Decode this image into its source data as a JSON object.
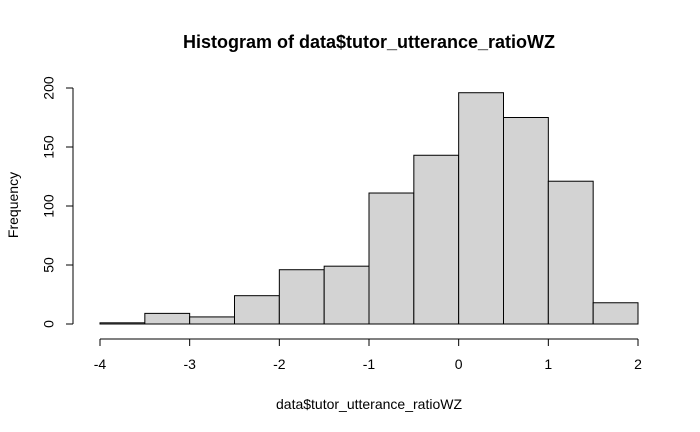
{
  "chart_data": {
    "type": "bar",
    "title": "Histogram of data$tutor_utterance_ratioWZ",
    "xlabel": "data$tutor_utterance_ratioWZ",
    "ylabel": "Frequency",
    "bins": [
      {
        "start": -4.0,
        "end": -3.5,
        "count": 1
      },
      {
        "start": -3.5,
        "end": -3.0,
        "count": 9
      },
      {
        "start": -3.0,
        "end": -2.5,
        "count": 6
      },
      {
        "start": -2.5,
        "end": -2.0,
        "count": 24
      },
      {
        "start": -2.0,
        "end": -1.5,
        "count": 46
      },
      {
        "start": -1.5,
        "end": -1.0,
        "count": 49
      },
      {
        "start": -1.0,
        "end": -0.5,
        "count": 111
      },
      {
        "start": -0.5,
        "end": 0.0,
        "count": 143
      },
      {
        "start": 0.0,
        "end": 0.5,
        "count": 196
      },
      {
        "start": 0.5,
        "end": 1.0,
        "count": 175
      },
      {
        "start": 1.0,
        "end": 1.5,
        "count": 121
      },
      {
        "start": 1.5,
        "end": 2.0,
        "count": 18
      }
    ],
    "xlim": [
      -4,
      2
    ],
    "ylim": [
      0,
      200
    ],
    "x_ticks": [
      -4,
      -3,
      -2,
      -1,
      0,
      1,
      2
    ],
    "y_ticks": [
      0,
      50,
      100,
      150,
      200
    ],
    "grid": false,
    "bar_color": "#d3d3d3",
    "bar_stroke": "#000000"
  }
}
